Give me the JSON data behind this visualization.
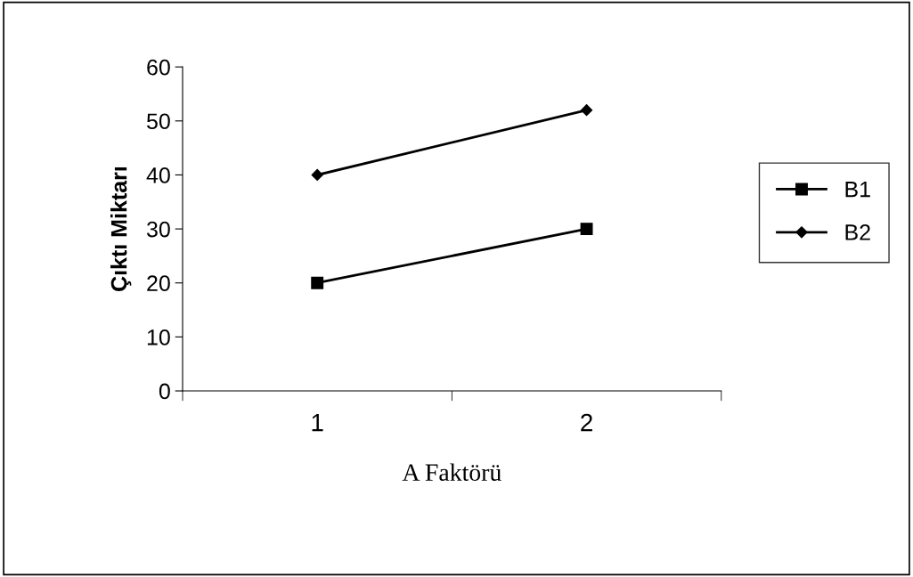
{
  "chart_data": {
    "type": "line",
    "xlabel": "A Faktörü",
    "ylabel": "Çıktı Miktarı",
    "categories": [
      "1",
      "2"
    ],
    "series": [
      {
        "name": "B1",
        "color": "#000000",
        "values": [
          20,
          30
        ],
        "marker": "square"
      },
      {
        "name": "B2",
        "color": "#000000",
        "values": [
          40,
          52
        ],
        "marker": "diamond"
      }
    ],
    "ylim": [
      0,
      60
    ],
    "yticks": [
      0,
      10,
      20,
      30,
      40,
      50,
      60
    ],
    "grid": false,
    "legend": "right",
    "line_style": "solid"
  }
}
